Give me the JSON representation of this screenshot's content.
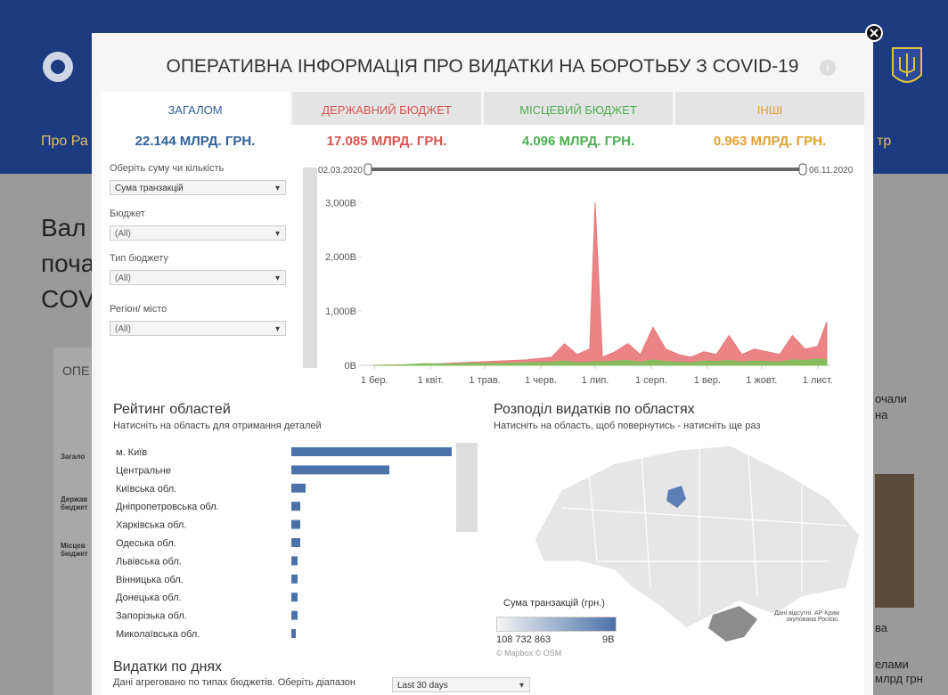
{
  "background": {
    "menu_left": "Про Ра",
    "menu_right": "тр",
    "headline": [
      "Вал",
      "поча",
      "COV"
    ],
    "section": "ОПЕ",
    "side_labels": [
      "Загало",
      "Держав бюджет",
      "Місцев бюджет"
    ],
    "right_texts": [
      "очали",
      "на",
      "ва",
      "елами",
      "млрд грн"
    ]
  },
  "modal": {
    "title": "ОПЕРАТИВНА ІНФОРМАЦІЯ ПРО ВИДАТКИ НА БОРОТЬБУ З COVID-19",
    "tabs": [
      {
        "name": "ЗАГАЛОМ",
        "amount": "22.144 МЛРД. ГРН.",
        "color": "#2f5f9a"
      },
      {
        "name": "ДЕРЖАВНИЙ БЮДЖЕТ",
        "amount": "17.085 МЛРД. ГРН.",
        "color": "#d9534f"
      },
      {
        "name": "МІСЦЕВИЙ БЮДЖЕТ",
        "amount": "4.096 МЛРД. ГРН.",
        "color": "#4caf50"
      },
      {
        "name": "ІНШІ",
        "amount": "0.963 МЛРД. ГРН.",
        "color": "#e0a030"
      }
    ],
    "filters": [
      {
        "label": "Оберіть суму чи кількість",
        "value": "Сума транзакцій"
      },
      {
        "label": "Бюджет",
        "value": "(All)"
      },
      {
        "label": "Тип бюджету",
        "value": "(All)"
      },
      {
        "label": "Регіон/ місто",
        "value": "(All)"
      }
    ],
    "range_start": "02.03.2020",
    "range_end": "06.11.2020",
    "rating_title": "Рейтинг областей",
    "rating_subtitle": "Натисніть на область для отримання деталей",
    "map_title": "Розподіл видатків по областях",
    "map_subtitle": "Натисніть на область, щоб повернутись - натисніть ще раз",
    "map_legend_title": "Сума транзакцій (грн.)",
    "map_legend_min": "108 732 863",
    "map_legend_max": "9B",
    "map_credit": "© Mapbox © OSM",
    "map_note": "Дані відсутні. АР Крим окупована Росією.",
    "daily_title": "Видатки по днях",
    "daily_subtitle": "Дані агреговано по типах бюджетів. Оберіть діапазон",
    "daily_select": "Last 30 days"
  },
  "chart_data": [
    {
      "type": "area",
      "x": [
        "2020-03-01",
        "2020-03-15",
        "2020-03-29",
        "2020-04-12",
        "2020-04-26",
        "2020-05-10",
        "2020-05-24",
        "2020-06-07",
        "2020-06-14",
        "2020-06-21",
        "2020-06-28",
        "2020-07-01",
        "2020-07-05",
        "2020-07-12",
        "2020-07-19",
        "2020-07-26",
        "2020-08-02",
        "2020-08-09",
        "2020-08-16",
        "2020-08-23",
        "2020-08-30",
        "2020-09-06",
        "2020-09-13",
        "2020-09-20",
        "2020-09-27",
        "2020-10-04",
        "2020-10-11",
        "2020-10-18",
        "2020-10-25",
        "2020-11-01",
        "2020-11-06"
      ],
      "series": [
        {
          "color": "#e8777a",
          "values": [
            0,
            10,
            20,
            40,
            60,
            80,
            100,
            150,
            400,
            200,
            300,
            3000,
            150,
            250,
            400,
            200,
            700,
            300,
            200,
            150,
            250,
            200,
            550,
            200,
            300,
            250,
            200,
            550,
            300,
            350,
            800
          ]
        },
        {
          "color": "#7fbf5a",
          "values": [
            0,
            5,
            30,
            20,
            40,
            30,
            50,
            60,
            80,
            50,
            60,
            70,
            60,
            80,
            90,
            60,
            100,
            70,
            60,
            50,
            80,
            70,
            90,
            60,
            80,
            70,
            60,
            100,
            90,
            120,
            100
          ]
        }
      ],
      "xlim": [
        "2020-02-23",
        "2020-11-08"
      ],
      "xticks": [
        {
          "value": "2020-03-01",
          "label": "1 бер."
        },
        {
          "value": "2020-04-01",
          "label": "1 квіт."
        },
        {
          "value": "2020-05-01",
          "label": "1 трав."
        },
        {
          "value": "2020-06-01",
          "label": "1 черв."
        },
        {
          "value": "2020-07-01",
          "label": "1 лип."
        },
        {
          "value": "2020-08-01",
          "label": "1 серп."
        },
        {
          "value": "2020-09-01",
          "label": "1 вер."
        },
        {
          "value": "2020-10-01",
          "label": "1 жовт."
        },
        {
          "value": "2020-11-01",
          "label": "1 лист."
        }
      ],
      "ylim": [
        0,
        3400
      ],
      "yticks": [
        {
          "value": 0,
          "label": "0B"
        },
        {
          "value": 1000,
          "label": "1,000B"
        },
        {
          "value": 2000,
          "label": "2,000B"
        },
        {
          "value": 3000,
          "label": "3,000B"
        }
      ]
    },
    {
      "type": "bar",
      "color": "#4a72a8",
      "categories": [
        "м. Київ",
        "Центральне",
        "Київська обл.",
        "Дніпропетровська обл.",
        "Харківська обл.",
        "Одеська обл.",
        "Львівська обл.",
        "Вінницька обл.",
        "Донецька обл.",
        "Запорізька обл.",
        "Миколаївська обл."
      ],
      "values": [
        9.0,
        5.5,
        0.8,
        0.5,
        0.5,
        0.5,
        0.35,
        0.35,
        0.35,
        0.35,
        0.25
      ]
    }
  ]
}
